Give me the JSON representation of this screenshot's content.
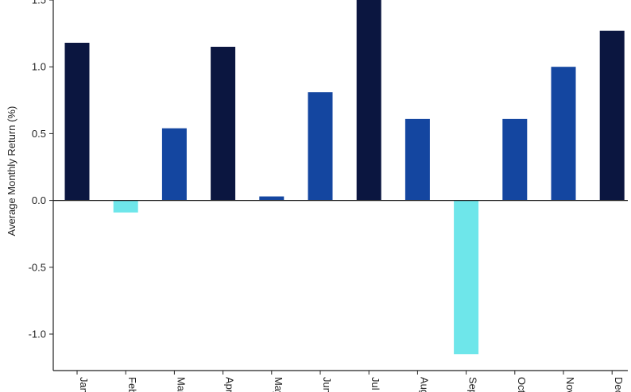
{
  "chart_data": {
    "type": "bar",
    "title": "",
    "xlabel": "",
    "ylabel": "Average Monthly Return (%)",
    "categories": [
      "Jan",
      "Feb",
      "Mar",
      "Apr",
      "May",
      "Jun",
      "Jul",
      "Aug",
      "Sep",
      "Oct",
      "Nov",
      "Dec"
    ],
    "values": [
      1.18,
      -0.09,
      0.54,
      1.15,
      0.03,
      0.81,
      1.5,
      0.61,
      -1.15,
      0.61,
      1.0,
      1.27
    ],
    "ylim": [
      -1.3,
      1.5
    ],
    "yticks": [
      1.5,
      1.0,
      0.5,
      0.0,
      -0.5,
      -1.0
    ],
    "ytick_labels": [
      "1.5",
      "1.0",
      "0.5",
      "0.0",
      "-0.5",
      "-1.0"
    ],
    "grid": false,
    "legend": "none",
    "colors": {
      "high": "#0b1640",
      "medium": "#1446a0",
      "negative": "#6ee6ea",
      "axis": "#222222"
    },
    "bar_colors": [
      "high",
      "negative",
      "medium",
      "high",
      "medium",
      "medium",
      "high",
      "medium",
      "negative",
      "medium",
      "medium",
      "high"
    ]
  }
}
